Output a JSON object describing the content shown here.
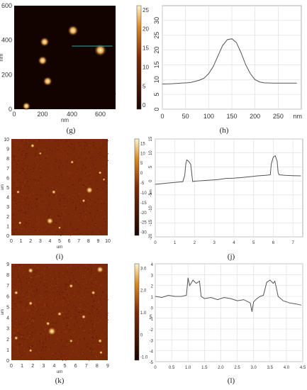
{
  "captions": [
    "(g)",
    "(h)",
    "(i)",
    "(j)",
    "(k)",
    "(l)"
  ],
  "colors": {
    "afm_dark": "#1a0400",
    "afm_mid": "#7a2a05",
    "afm_bright": "#fff4c8",
    "profile_line": "#555555",
    "grid": "#dddddd",
    "scan_line": "#3aa7a0"
  },
  "panel_g": {
    "x_unit": "nm",
    "y_unit": "nm",
    "x_ticks": [
      "0",
      "200",
      "400",
      "600"
    ],
    "y_ticks": [
      "0",
      "200",
      "400",
      "600"
    ],
    "colorbar_ticks": [
      "0",
      "5",
      "10",
      "15",
      "20",
      "25"
    ]
  },
  "panel_i": {
    "x_unit": "um",
    "y_unit": "um",
    "x_ticks": [
      "0",
      "1",
      "2",
      "3",
      "4",
      "5",
      "6",
      "7",
      "8",
      "9",
      "10"
    ],
    "y_ticks": [
      "0",
      "1",
      "2",
      "3",
      "4",
      "5",
      "6",
      "7",
      "8",
      "9",
      "10"
    ],
    "colorbar_ticks": [
      "-30",
      "-25",
      "-20",
      "-15",
      "-10",
      "-5",
      "0",
      "5",
      "10",
      "15"
    ],
    "colorbar_unit": "nm"
  },
  "panel_k": {
    "x_unit": "um",
    "y_unit": "um",
    "x_ticks": [
      "0",
      "1",
      "2",
      "3",
      "4",
      "5",
      "6",
      "7",
      "8",
      "9"
    ],
    "y_ticks": [
      "0",
      "1",
      "2",
      "3",
      "4",
      "5",
      "6",
      "7",
      "8",
      "9"
    ],
    "colorbar_ticks": [
      "-1.0",
      "0",
      "1.0",
      "2.0",
      "3.0"
    ],
    "colorbar_unit": "nm"
  },
  "chart_data": [
    {
      "type": "line",
      "panel": "h",
      "xlabel": "nm",
      "ylabel": "",
      "xlim": [
        0,
        300
      ],
      "ylim": [
        0,
        35
      ],
      "x_ticks": [
        "0",
        "50",
        "100",
        "150",
        "200",
        "250",
        "nm"
      ],
      "y_ticks": [
        "0",
        "5",
        "10",
        "15",
        "20",
        "25",
        "30"
      ],
      "grid": true,
      "x": [
        0,
        20,
        40,
        60,
        80,
        90,
        100,
        110,
        120,
        130,
        140,
        150,
        160,
        170,
        180,
        190,
        200,
        210,
        220,
        240,
        260,
        280,
        290
      ],
      "y": [
        8.5,
        8.6,
        8.8,
        9.0,
        9.8,
        10.5,
        12,
        14.5,
        18,
        21.5,
        23.5,
        23.8,
        22.5,
        19,
        15,
        12,
        10,
        9.2,
        8.9,
        8.8,
        8.8,
        8.8,
        8.8
      ]
    },
    {
      "type": "line",
      "panel": "j",
      "xlabel": "",
      "ylabel": "",
      "xlim": [
        0,
        7.5
      ],
      "ylim": [
        -20,
        15
      ],
      "x_ticks": [
        "0",
        "1",
        "2",
        "3",
        "4",
        "5",
        "6",
        "7"
      ],
      "y_ticks": [
        "-20",
        "-15",
        "-10",
        "-5",
        "0",
        "5",
        "10",
        "15"
      ],
      "grid": true,
      "x": [
        0,
        0.3,
        0.6,
        0.9,
        1.2,
        1.4,
        1.5,
        1.55,
        1.6,
        1.7,
        1.8,
        1.85,
        1.9,
        2.0,
        2.4,
        2.8,
        3.2,
        3.6,
        4.0,
        4.4,
        4.8,
        5.2,
        5.6,
        5.85,
        5.9,
        6.0,
        6.1,
        6.2,
        6.25,
        6.3,
        6.6,
        7.0,
        7.4
      ],
      "y": [
        -1.2,
        -1.0,
        -0.8,
        -0.6,
        -0.4,
        -0.3,
        2,
        6,
        7.5,
        7,
        6,
        3,
        -0.2,
        -0.1,
        0.1,
        0.3,
        0.5,
        0.9,
        1.0,
        1.2,
        1.5,
        1.8,
        2.0,
        2.2,
        6,
        8.5,
        9,
        7,
        3,
        2.2,
        2.0,
        1.9,
        1.8
      ]
    },
    {
      "type": "line",
      "panel": "l",
      "xlabel": "",
      "ylabel": "",
      "xlim": [
        0,
        4.5
      ],
      "ylim": [
        -5,
        4
      ],
      "x_ticks": [
        "0",
        "0.5",
        "1.0",
        "1.5",
        "2.0",
        "2.5",
        "3.0",
        "3.5",
        "4.0",
        "4.5"
      ],
      "y_ticks": [
        "-5",
        "-4",
        "-3",
        "-2",
        "-1",
        "0",
        "1",
        "2",
        "3",
        "4"
      ],
      "grid": true,
      "x": [
        0,
        0.2,
        0.4,
        0.6,
        0.8,
        0.95,
        1.0,
        1.05,
        1.15,
        1.25,
        1.35,
        1.4,
        1.5,
        1.7,
        1.9,
        2.1,
        2.3,
        2.5,
        2.7,
        2.9,
        2.95,
        3.0,
        3.1,
        3.2,
        3.3,
        3.4,
        3.5,
        3.6,
        3.65,
        3.75,
        3.9,
        4.1,
        4.3,
        4.45
      ],
      "y": [
        1.0,
        0.9,
        1.1,
        1.0,
        1.0,
        1.1,
        2.7,
        2.0,
        2.5,
        2.2,
        2.4,
        1.0,
        0.8,
        0.9,
        0.7,
        0.9,
        0.8,
        0.6,
        0.7,
        0.4,
        -0.4,
        0.5,
        0.8,
        1.0,
        1.1,
        2.3,
        2.5,
        2.2,
        2.4,
        1.0,
        0.6,
        0.4,
        0.3,
        0.2
      ]
    }
  ]
}
